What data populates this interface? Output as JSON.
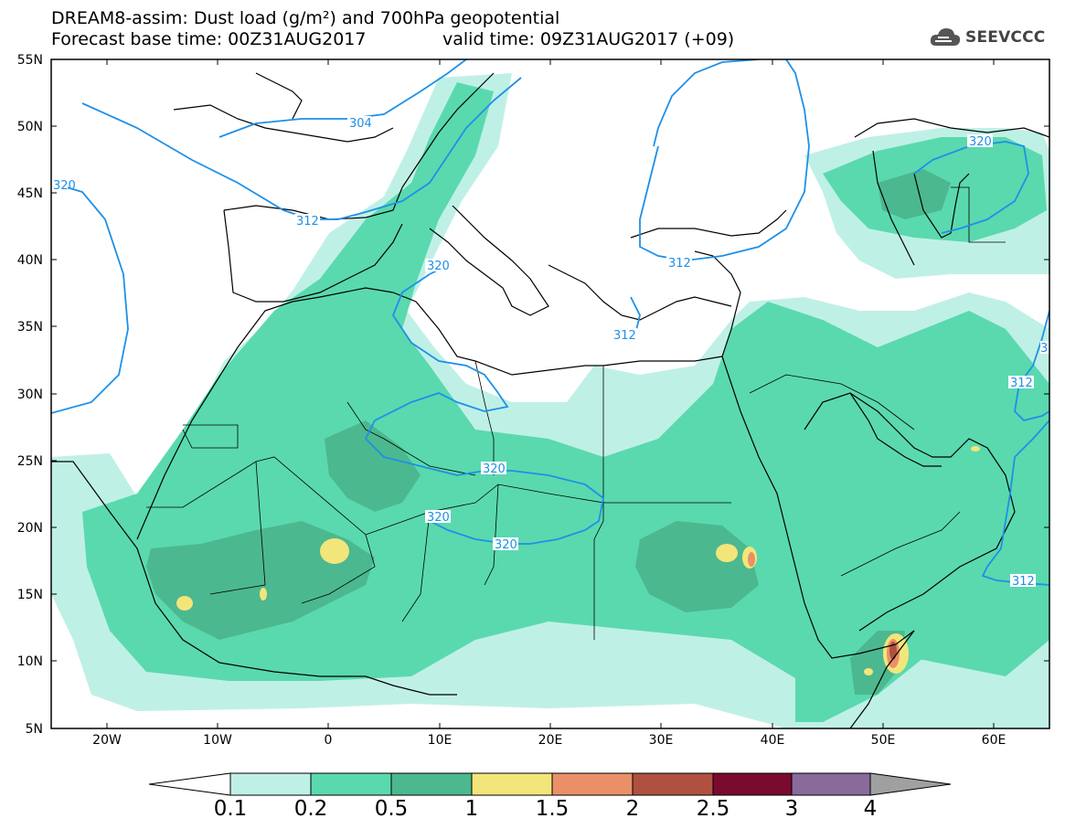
{
  "header": {
    "title_line1": "DREAM8-assim: Dust load (g/m²) and 700hPa geopotential",
    "title_line2": "Forecast base time: 00Z31AUG2017",
    "valid_time": "valid time: 09Z31AUG2017 (+09)",
    "logo_text": "SEEVCCC",
    "logo_icon": "cloud-icon"
  },
  "map": {
    "projection": "lat-lon",
    "lon_range": [
      -25,
      65
    ],
    "lat_range": [
      5,
      55
    ],
    "lat_labels": [
      "55N",
      "50N",
      "45N",
      "40N",
      "35N",
      "30N",
      "25N",
      "20N",
      "15N",
      "10N",
      "5N"
    ],
    "lon_labels": [
      "20W",
      "10W",
      "0",
      "10E",
      "20E",
      "30E",
      "40E",
      "50E",
      "60E"
    ],
    "contour_color": "#1e90e8",
    "contour_labels": [
      "304",
      "312",
      "320",
      "312",
      "320",
      "312",
      "320",
      "320",
      "320",
      "312",
      "320",
      "312",
      "312",
      "320",
      "312",
      "320",
      "3"
    ]
  },
  "colorbar": {
    "colors": [
      "#ffffff",
      "#bff0e6",
      "#5ad9ae",
      "#4cb88f",
      "#f2e67a",
      "#e99068",
      "#b05040",
      "#7a0a2e",
      "#8a6a9a",
      "#a0a0a0"
    ],
    "labels": [
      "0.1",
      "0.2",
      "0.5",
      "1",
      "1.5",
      "2",
      "2.5",
      "3",
      "4"
    ]
  }
}
